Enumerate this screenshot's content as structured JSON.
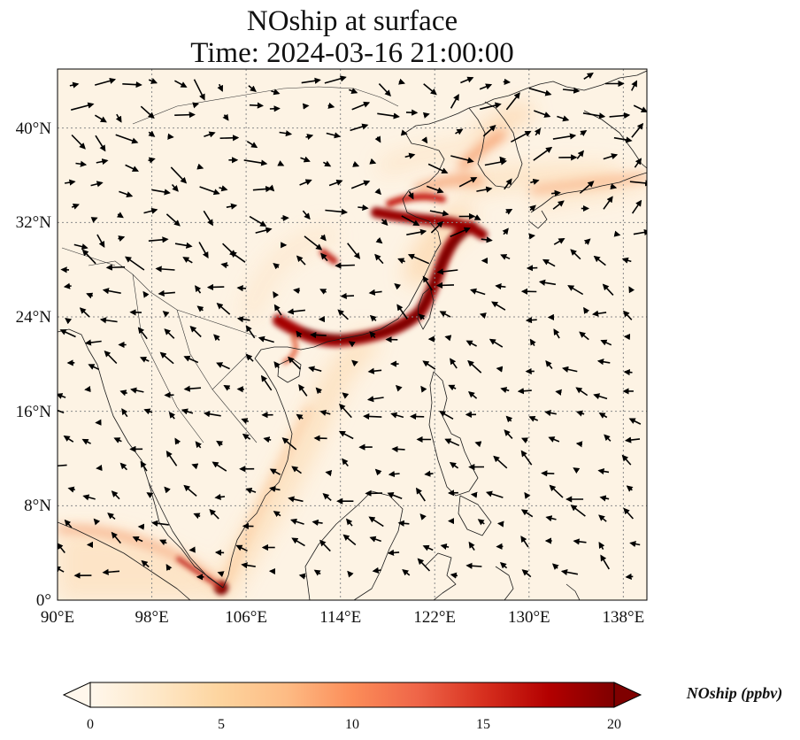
{
  "title": {
    "line1": "NOship at surface",
    "line2": "Time: 2024-03-16 21:00:00"
  },
  "map": {
    "lon_range": [
      90,
      140
    ],
    "lat_range": [
      0,
      45
    ],
    "lon_ticks": [
      {
        "value": 90,
        "label": "90°E"
      },
      {
        "value": 98,
        "label": "98°E"
      },
      {
        "value": 106,
        "label": "106°E"
      },
      {
        "value": 114,
        "label": "114°E"
      },
      {
        "value": 122,
        "label": "122°E"
      },
      {
        "value": 130,
        "label": "130°E"
      },
      {
        "value": 138,
        "label": "138°E"
      }
    ],
    "lat_ticks": [
      {
        "value": 0,
        "label": "0°"
      },
      {
        "value": 8,
        "label": "8°N"
      },
      {
        "value": 16,
        "label": "16°N"
      },
      {
        "value": 24,
        "label": "24°N"
      },
      {
        "value": 32,
        "label": "32°N"
      },
      {
        "value": 40,
        "label": "40°N"
      }
    ],
    "gridlines": true
  },
  "colorbar": {
    "label": "NOship (ppbv)",
    "min": 0,
    "max": 20,
    "extend": "both",
    "colormap": "OrRd",
    "ticks": [
      {
        "value": 0,
        "label": "0"
      },
      {
        "value": 5,
        "label": "5"
      },
      {
        "value": 10,
        "label": "10"
      },
      {
        "value": 15,
        "label": "15"
      },
      {
        "value": 20,
        "label": "20"
      }
    ],
    "colors": [
      "#fff7ec",
      "#fee8c8",
      "#fdd49e",
      "#fdbb84",
      "#fc8d59",
      "#ef6548",
      "#d7301f",
      "#b30000",
      "#7f0000"
    ]
  }
}
